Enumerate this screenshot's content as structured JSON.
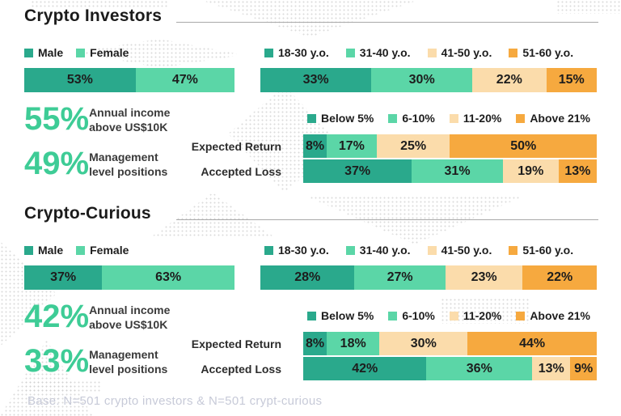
{
  "colors": {
    "teal": "#2AA98C",
    "green": "#5BD6A7",
    "peach": "#FBDCAB",
    "orange": "#F6A93F",
    "accent_text": "#3ECC96"
  },
  "legend_gender": [
    {
      "label": "Male"
    },
    {
      "label": "Female"
    }
  ],
  "legend_age": [
    {
      "label": "18-30 y.o."
    },
    {
      "label": "31-40 y.o."
    },
    {
      "label": "41-50 y.o."
    },
    {
      "label": "51-60 y.o."
    }
  ],
  "legend_risk": [
    {
      "label": "Below 5%"
    },
    {
      "label": "6-10%"
    },
    {
      "label": "11-20%"
    },
    {
      "label": "Above 21%"
    }
  ],
  "sections": [
    {
      "title": "Crypto Investors",
      "gender_values": [
        53,
        47
      ],
      "age_values": [
        33,
        30,
        22,
        15
      ],
      "stats": [
        {
          "value": "55%",
          "label_line1": "Annual income",
          "label_line2": "above US$10K"
        },
        {
          "value": "49%",
          "label_line1": "Management",
          "label_line2": "level positions"
        }
      ],
      "risk_rows": [
        {
          "label": "Expected Return",
          "values": [
            8,
            17,
            25,
            50
          ]
        },
        {
          "label": "Accepted Loss",
          "values": [
            37,
            31,
            19,
            13
          ]
        }
      ]
    },
    {
      "title": "Crypto-Curious",
      "gender_values": [
        37,
        63
      ],
      "age_values": [
        28,
        27,
        23,
        22
      ],
      "stats": [
        {
          "value": "42%",
          "label_line1": "Annual income",
          "label_line2": "above US$10K"
        },
        {
          "value": "33%",
          "label_line1": "Management",
          "label_line2": "level positions"
        }
      ],
      "risk_rows": [
        {
          "label": "Expected Return",
          "values": [
            8,
            18,
            30,
            44
          ]
        },
        {
          "label": "Accepted Loss",
          "values": [
            42,
            36,
            13,
            9
          ]
        }
      ]
    }
  ],
  "footer": "Base: N=501 crypto investors & N=501 crypt-curious",
  "chart_data": [
    {
      "type": "bar",
      "stacked": true,
      "orientation": "horizontal",
      "unit": "%",
      "title": "Crypto Investors — Gender",
      "categories": [
        "Male",
        "Female"
      ],
      "values": [
        53,
        47
      ],
      "legend_position": "top",
      "grid": false
    },
    {
      "type": "bar",
      "stacked": true,
      "orientation": "horizontal",
      "unit": "%",
      "title": "Crypto Investors — Age",
      "categories": [
        "18-30 y.o.",
        "31-40 y.o.",
        "41-50 y.o.",
        "51-60 y.o."
      ],
      "values": [
        33,
        30,
        22,
        15
      ],
      "legend_position": "top",
      "grid": false
    },
    {
      "type": "table",
      "title": "Crypto Investors — Key stats",
      "rows": [
        [
          "Annual income above US$10K",
          "55%"
        ],
        [
          "Management level positions",
          "49%"
        ]
      ]
    },
    {
      "type": "bar",
      "stacked": true,
      "orientation": "horizontal",
      "unit": "%",
      "title": "Crypto Investors — Return vs Loss",
      "categories": [
        "Below 5%",
        "6-10%",
        "11-20%",
        "Above 21%"
      ],
      "series": [
        {
          "name": "Expected Return",
          "values": [
            8,
            17,
            25,
            50
          ]
        },
        {
          "name": "Accepted Loss",
          "values": [
            37,
            31,
            19,
            13
          ]
        }
      ],
      "legend_position": "top",
      "grid": false
    },
    {
      "type": "bar",
      "stacked": true,
      "orientation": "horizontal",
      "unit": "%",
      "title": "Crypto-Curious — Gender",
      "categories": [
        "Male",
        "Female"
      ],
      "values": [
        37,
        63
      ],
      "legend_position": "top",
      "grid": false
    },
    {
      "type": "bar",
      "stacked": true,
      "orientation": "horizontal",
      "unit": "%",
      "title": "Crypto-Curious — Age",
      "categories": [
        "18-30 y.o.",
        "31-40 y.o.",
        "41-50 y.o.",
        "51-60 y.o."
      ],
      "values": [
        28,
        27,
        23,
        22
      ],
      "legend_position": "top",
      "grid": false
    },
    {
      "type": "table",
      "title": "Crypto-Curious — Key stats",
      "rows": [
        [
          "Annual income above US$10K",
          "42%"
        ],
        [
          "Management level positions",
          "33%"
        ]
      ]
    },
    {
      "type": "bar",
      "stacked": true,
      "orientation": "horizontal",
      "unit": "%",
      "title": "Crypto-Curious — Return vs Loss",
      "categories": [
        "Below 5%",
        "6-10%",
        "11-20%",
        "Above 21%"
      ],
      "series": [
        {
          "name": "Expected Return",
          "values": [
            8,
            18,
            30,
            44
          ]
        },
        {
          "name": "Accepted Loss",
          "values": [
            42,
            36,
            13,
            9
          ]
        }
      ],
      "legend_position": "top",
      "grid": false
    }
  ]
}
